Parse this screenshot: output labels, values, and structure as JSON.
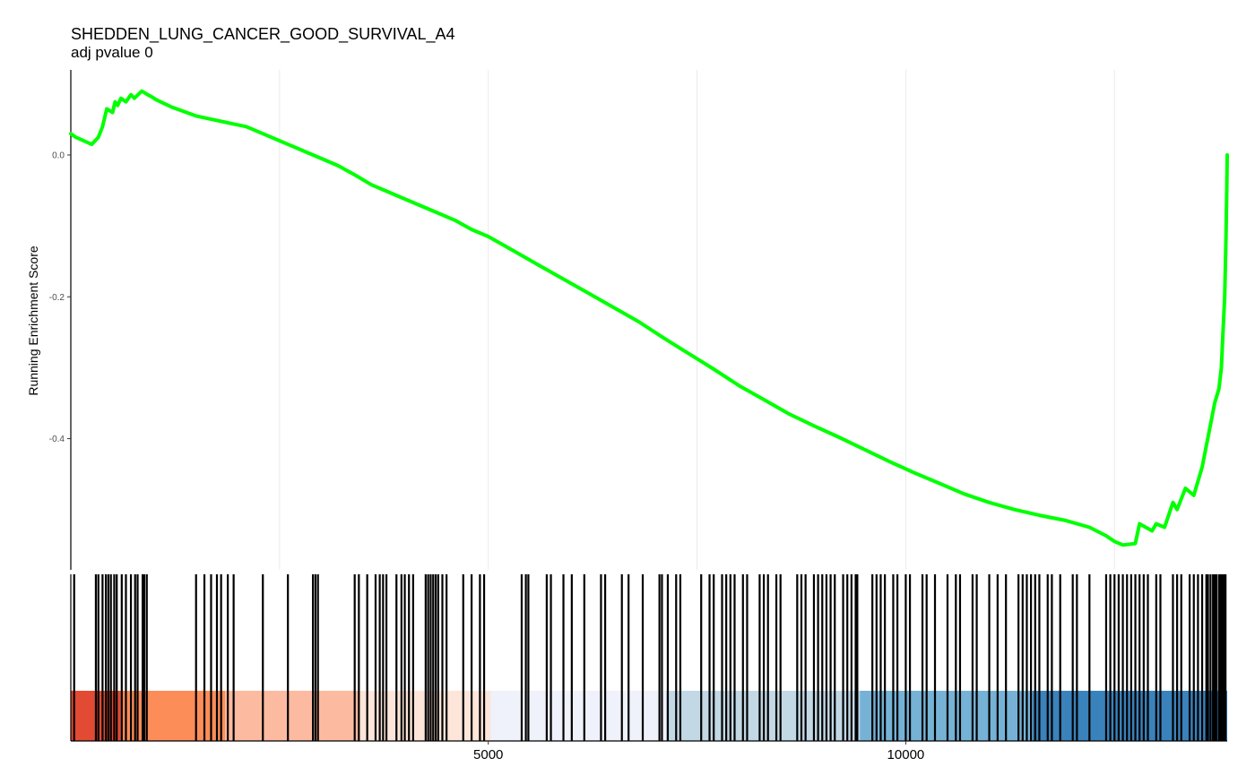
{
  "chart_data": {
    "type": "line",
    "title": "SHEDDEN_LUNG_CANCER_GOOD_SURVIVAL_A4",
    "subtitle": "adj pvalue 0",
    "ylabel": "Running Enrichment Score",
    "xlabel": "",
    "xlim": [
      0,
      13850
    ],
    "ylim": [
      -0.585,
      0.12
    ],
    "yticks": [
      {
        "value": 0,
        "label": "0.0"
      },
      {
        "value": -0.2,
        "label": "-0.2"
      },
      {
        "value": -0.4,
        "label": "-0.4"
      }
    ],
    "xticks": [
      {
        "value": 5000,
        "label": "5000"
      },
      {
        "value": 10000,
        "label": "10000"
      }
    ],
    "x_gridlines": [
      2500,
      5000,
      7500,
      10000,
      12500
    ],
    "grid": "vertical only",
    "line_color": "#00ff00",
    "series": [
      {
        "x": [
          0,
          60,
          250,
          330,
          380,
          430,
          500,
          530,
          560,
          600,
          660,
          720,
          760,
          850,
          880,
          920,
          970,
          1020,
          1200,
          1500,
          1700,
          1900,
          2100,
          2300,
          2500,
          2600,
          2800,
          3000,
          3200,
          3400,
          3600,
          3800,
          4000,
          4200,
          4400,
          4600,
          4800,
          5000,
          5300,
          5600,
          5900,
          6200,
          6500,
          6800,
          7100,
          7400,
          7700,
          8000,
          8300,
          8600,
          8900,
          9200,
          9500,
          9800,
          10100,
          10400,
          10700,
          11000,
          11300,
          11600,
          11900,
          12200,
          12400,
          12500,
          12600,
          12750,
          12800,
          12950,
          13000,
          13100,
          13200,
          13250,
          13350,
          13450,
          13550,
          13600,
          13650,
          13700,
          13750,
          13780,
          13800,
          13820,
          13835,
          13845,
          13850
        ],
        "y": [
          0.03,
          0.025,
          0.015,
          0.025,
          0.04,
          0.065,
          0.06,
          0.075,
          0.07,
          0.08,
          0.075,
          0.085,
          0.08,
          0.09,
          0.088,
          0.085,
          0.082,
          0.078,
          0.068,
          0.055,
          0.05,
          0.045,
          0.04,
          0.03,
          0.02,
          0.015,
          0.005,
          -0.005,
          -0.015,
          -0.028,
          -0.042,
          -0.052,
          -0.062,
          -0.072,
          -0.082,
          -0.092,
          -0.105,
          -0.115,
          -0.135,
          -0.155,
          -0.175,
          -0.195,
          -0.215,
          -0.235,
          -0.258,
          -0.28,
          -0.302,
          -0.325,
          -0.345,
          -0.365,
          -0.382,
          -0.398,
          -0.415,
          -0.432,
          -0.448,
          -0.463,
          -0.478,
          -0.49,
          -0.5,
          -0.508,
          -0.515,
          -0.525,
          -0.537,
          -0.545,
          -0.55,
          -0.548,
          -0.52,
          -0.53,
          -0.52,
          -0.525,
          -0.49,
          -0.5,
          -0.47,
          -0.48,
          -0.44,
          -0.41,
          -0.38,
          -0.35,
          -0.33,
          -0.3,
          -0.25,
          -0.2,
          -0.12,
          -0.05,
          0.0
        ]
      }
    ],
    "hits": [
      40,
      300,
      330,
      380,
      420,
      450,
      480,
      520,
      550,
      610,
      660,
      720,
      770,
      800,
      860,
      880,
      910,
      1500,
      1600,
      1680,
      1750,
      1800,
      1880,
      1950,
      2300,
      2600,
      2900,
      2930,
      2960,
      3400,
      3450,
      3550,
      3650,
      3700,
      3740,
      3780,
      3900,
      3960,
      4000,
      4050,
      4100,
      4250,
      4280,
      4310,
      4340,
      4370,
      4400,
      4450,
      4500,
      4700,
      4800,
      4900,
      4950,
      5400,
      5450,
      5480,
      5700,
      5750,
      5900,
      6000,
      6150,
      6350,
      6400,
      6600,
      6680,
      6850,
      7050,
      7080,
      7150,
      7250,
      7300,
      7550,
      7650,
      7700,
      7800,
      7850,
      7900,
      7950,
      8050,
      8100,
      8250,
      8300,
      8350,
      8450,
      8500,
      8700,
      8750,
      8800,
      8900,
      8950,
      9000,
      9050,
      9100,
      9150,
      9250,
      9300,
      9350,
      9400,
      9420,
      9600,
      9650,
      9700,
      9750,
      9850,
      9900,
      10000,
      10050,
      10200,
      10250,
      10350,
      10500,
      10600,
      10650,
      10800,
      10850,
      11000,
      11100,
      11200,
      11350,
      11400,
      11450,
      11500,
      11550,
      11600,
      11700,
      11750,
      11850,
      12000,
      12050,
      12200,
      12400,
      12450,
      12500,
      12550,
      12600,
      12650,
      12700,
      12750,
      12800,
      12850,
      12900,
      13000,
      13050,
      13200,
      13250,
      13300,
      13400,
      13450,
      13500,
      13550,
      13600,
      13620,
      13650,
      13680,
      13700,
      13720,
      13750,
      13770,
      13790,
      13810,
      13830
    ],
    "rank_bands": [
      {
        "from": 0,
        "to": 600,
        "color": "#e34a33"
      },
      {
        "from": 600,
        "to": 1850,
        "color": "#fc8d59"
      },
      {
        "from": 1850,
        "to": 3450,
        "color": "#fcbba1"
      },
      {
        "from": 3450,
        "to": 5030,
        "color": "#fde5d9"
      },
      {
        "from": 5030,
        "to": 7130,
        "color": "#eff1fb"
      },
      {
        "from": 7130,
        "to": 9450,
        "color": "#c2d8e5"
      },
      {
        "from": 9450,
        "to": 11520,
        "color": "#75b2d6"
      },
      {
        "from": 11520,
        "to": 13850,
        "color": "#3a82bb"
      }
    ]
  }
}
